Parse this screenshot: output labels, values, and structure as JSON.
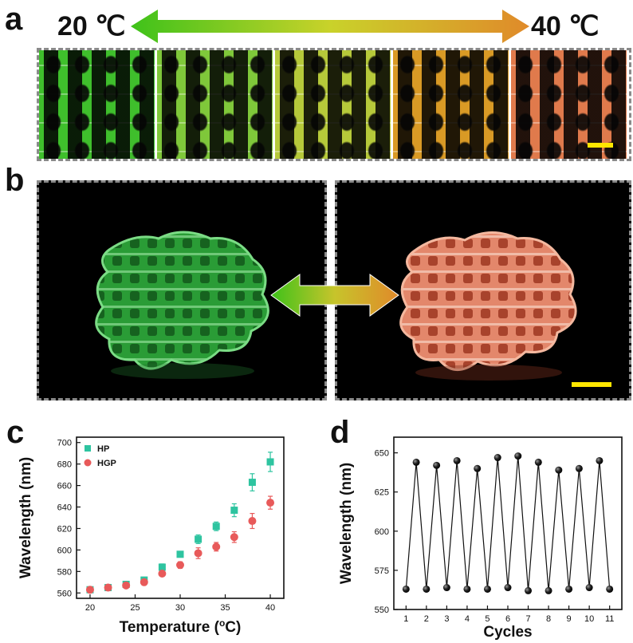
{
  "figure": {
    "panel_a": {
      "letter": "a",
      "left_temp": "20 ℃",
      "right_temp": "40 ℃",
      "strip_colors": [
        "#3fbf2c",
        "#7fc83a",
        "#b6c93a",
        "#d99a25",
        "#e07a4c"
      ],
      "arrow_gradient": [
        "#3ec21a",
        "#e08a2a"
      ],
      "scale_bar_color": "#ffe600"
    },
    "panel_b": {
      "letter": "b",
      "left_object_color": "#3dbf4a",
      "right_object_color": "#e9855a",
      "scale_bar_color": "#ffe600"
    },
    "panel_c": {
      "letter": "c"
    },
    "panel_d": {
      "letter": "d"
    }
  },
  "chart_data": [
    {
      "type": "scatter",
      "panel": "c",
      "xlabel": "Temperature (oC)",
      "ylabel": "Wavelength (nm)",
      "xlim": [
        18.5,
        41.5
      ],
      "ylim": [
        555,
        705
      ],
      "xticks": [
        20,
        25,
        30,
        35,
        40
      ],
      "yticks": [
        560,
        580,
        600,
        620,
        640,
        660,
        680,
        700
      ],
      "legend_position": "top-left",
      "series": [
        {
          "name": "HP",
          "marker": "square",
          "color": "#2ec4a0",
          "x": [
            20,
            22,
            24,
            26,
            28,
            30,
            32,
            34,
            36,
            38,
            40
          ],
          "y": [
            563,
            565,
            568,
            572,
            584,
            596,
            610,
            622,
            637,
            663,
            682
          ],
          "err": [
            2,
            2,
            2,
            2,
            3,
            2,
            4,
            4,
            6,
            8,
            9
          ]
        },
        {
          "name": "HGP",
          "marker": "circle",
          "color": "#e85a5a",
          "x": [
            20,
            22,
            24,
            26,
            28,
            30,
            32,
            34,
            36,
            38,
            40
          ],
          "y": [
            563,
            565,
            567,
            570,
            578,
            586,
            597,
            603,
            612,
            627,
            644
          ],
          "err": [
            1,
            1,
            2,
            2,
            2,
            3,
            5,
            4,
            5,
            7,
            6
          ]
        }
      ]
    },
    {
      "type": "line",
      "panel": "d",
      "xlabel": "Cycles",
      "ylabel": "Wavelength (nm)",
      "xlim": [
        0.4,
        11.6
      ],
      "ylim": [
        550,
        660
      ],
      "xticks": [
        1,
        2,
        3,
        4,
        5,
        6,
        7,
        8,
        9,
        10,
        11
      ],
      "yticks": [
        550,
        575,
        600,
        625,
        650
      ],
      "series": [
        {
          "color": "#111111",
          "x": [
            1,
            1.5,
            2,
            2.5,
            3,
            3.5,
            4,
            4.5,
            5,
            5.5,
            6,
            6.5,
            7,
            7.5,
            8,
            8.5,
            9,
            9.5,
            10,
            10.5,
            11
          ],
          "y": [
            563,
            644,
            563,
            642,
            564,
            645,
            563,
            640,
            563,
            647,
            564,
            648,
            562,
            644,
            562,
            639,
            563,
            640,
            564,
            645,
            563
          ]
        }
      ]
    }
  ]
}
